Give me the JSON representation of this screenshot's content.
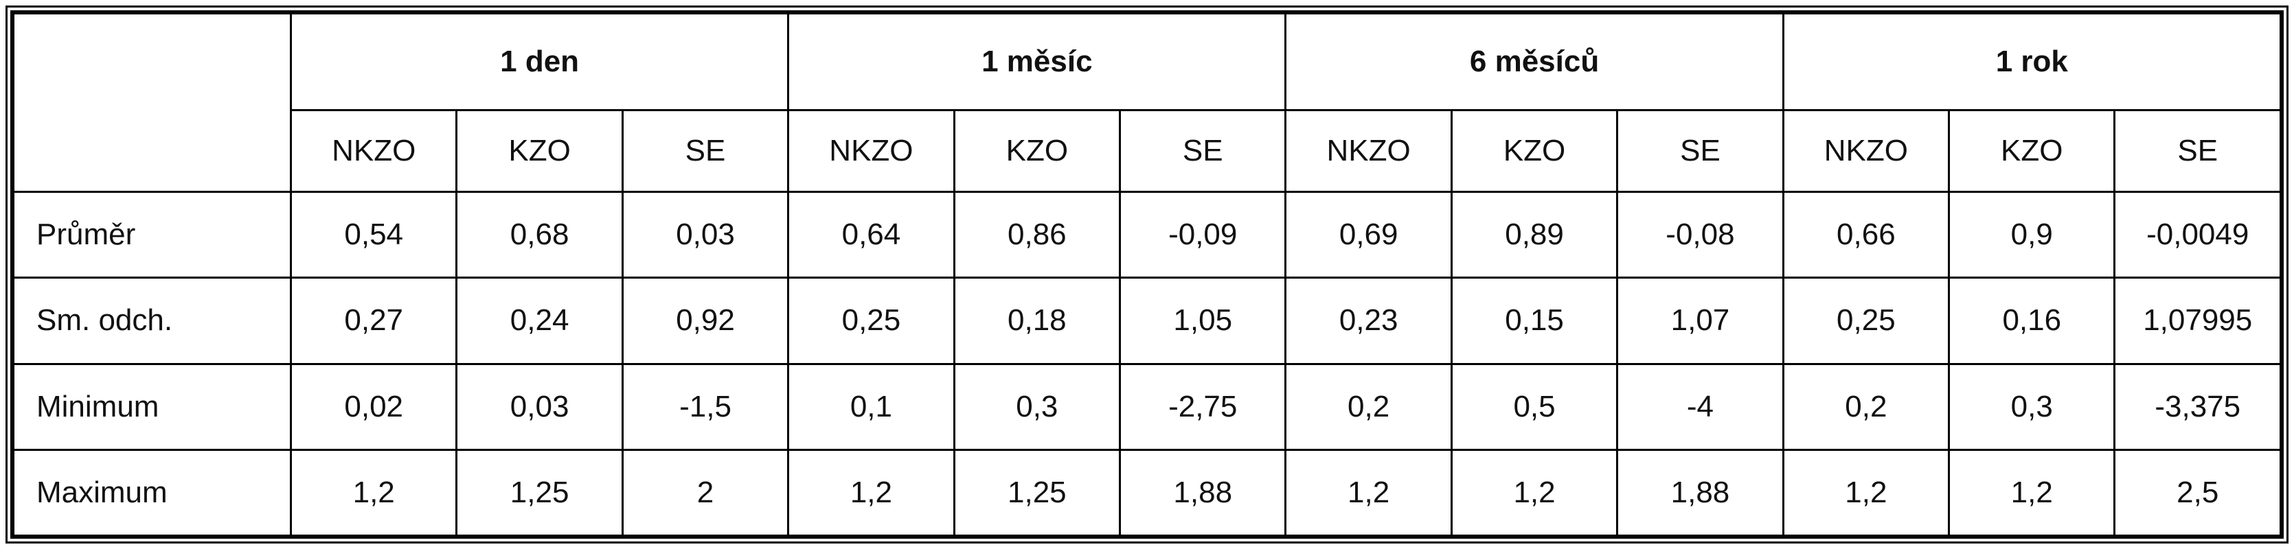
{
  "table": {
    "corner": "",
    "groups": [
      {
        "title": "1 den",
        "subcolumns": [
          "NKZO",
          "KZO",
          "SE"
        ]
      },
      {
        "title": "1 měsíc",
        "subcolumns": [
          "NKZO",
          "KZO",
          "SE"
        ]
      },
      {
        "title": "6 měsíců",
        "subcolumns": [
          "NKZO",
          "KZO",
          "SE"
        ]
      },
      {
        "title": "1 rok",
        "subcolumns": [
          "NKZO",
          "KZO",
          "SE"
        ]
      }
    ],
    "rows": [
      {
        "label": "Průměr",
        "values": [
          "0,54",
          "0,68",
          "0,03",
          "0,64",
          "0,86",
          "-0,09",
          "0,69",
          "0,89",
          "-0,08",
          "0,66",
          "0,9",
          "-0,0049"
        ]
      },
      {
        "label": "Sm. odch.",
        "values": [
          "0,27",
          "0,24",
          "0,92",
          "0,25",
          "0,18",
          "1,05",
          "0,23",
          "0,15",
          "1,07",
          "0,25",
          "0,16",
          "1,07995"
        ]
      },
      {
        "label": "Minimum",
        "values": [
          "0,02",
          "0,03",
          "-1,5",
          "0,1",
          "0,3",
          "-2,75",
          "0,2",
          "0,5",
          "-4",
          "0,2",
          "0,3",
          "-3,375"
        ]
      },
      {
        "label": "Maximum",
        "values": [
          "1,2",
          "1,25",
          "2",
          "1,2",
          "1,25",
          "1,88",
          "1,2",
          "1,2",
          "1,88",
          "1,2",
          "1,2",
          "2,5"
        ]
      }
    ]
  }
}
